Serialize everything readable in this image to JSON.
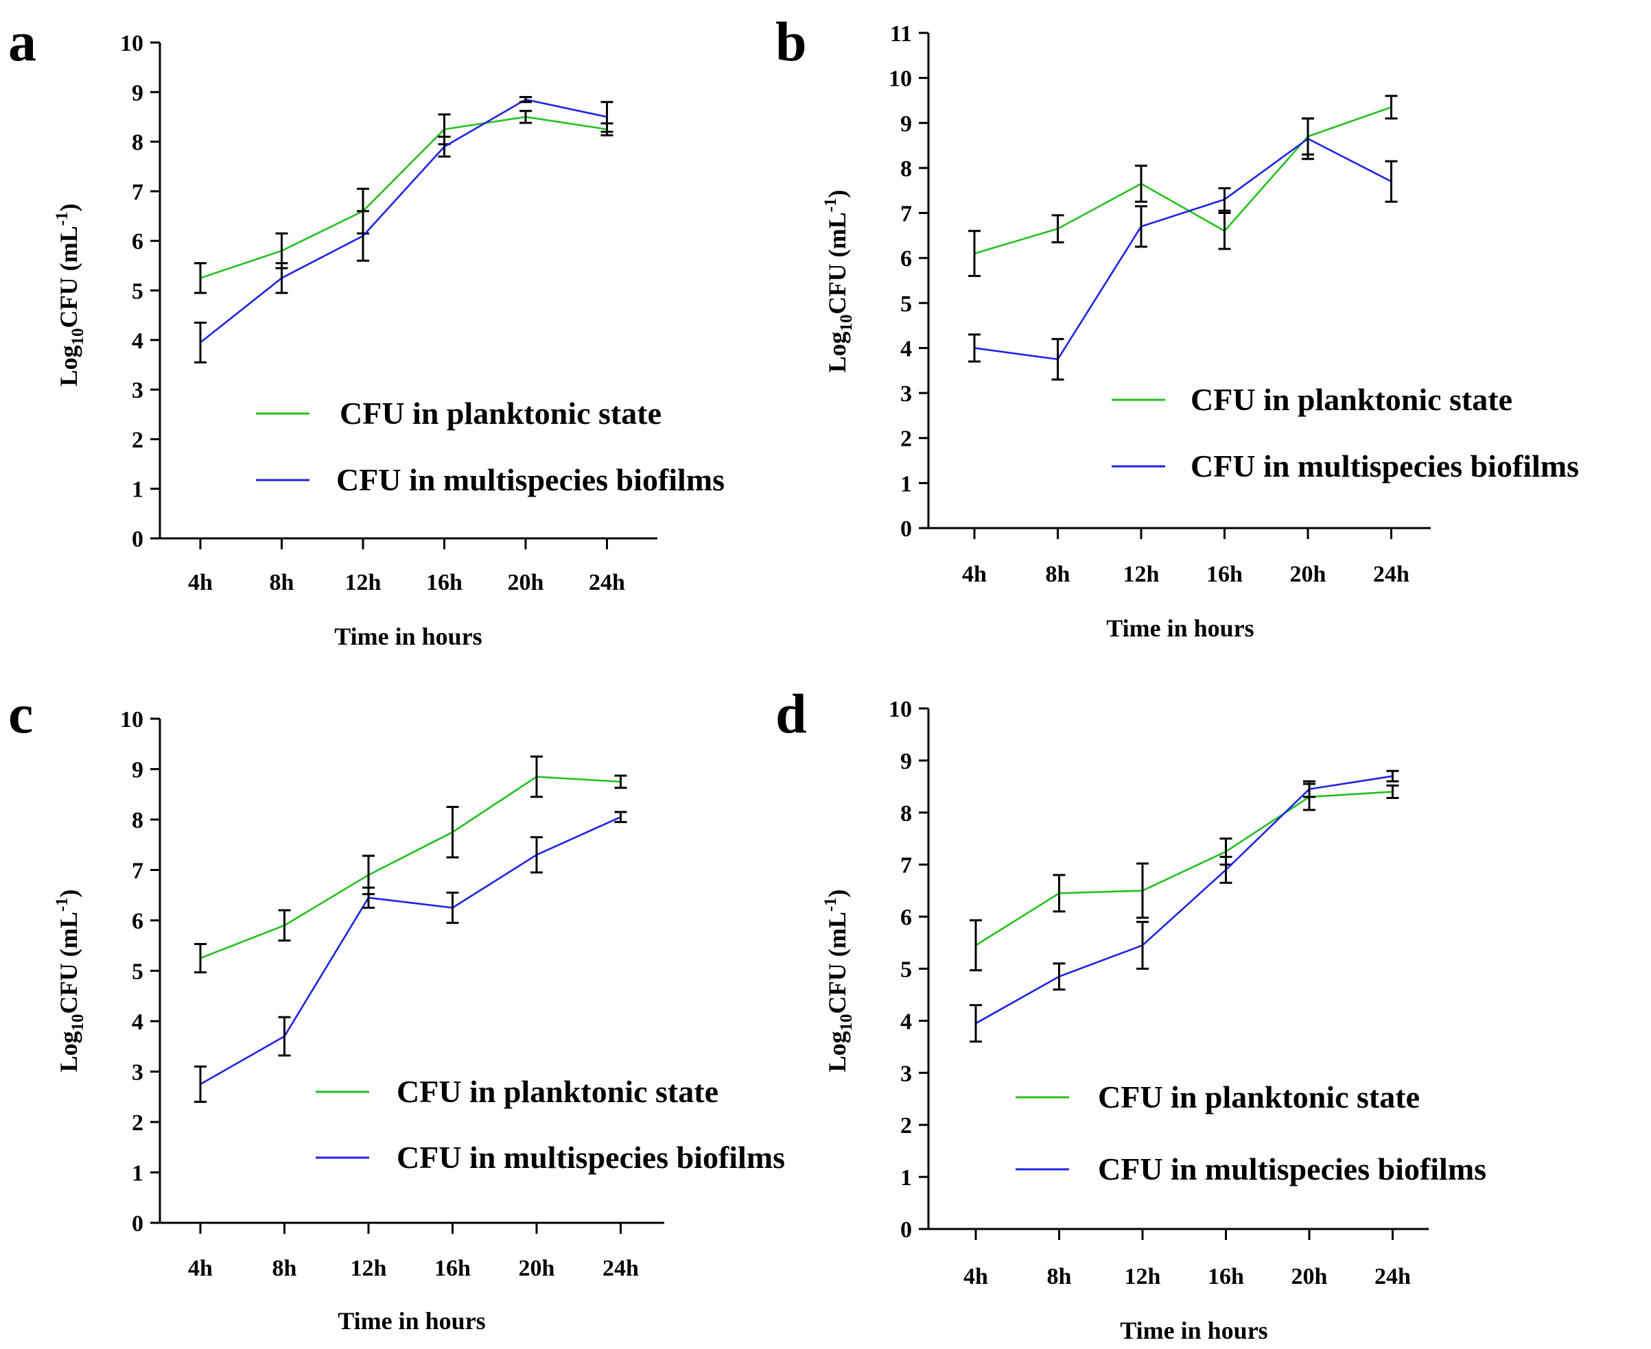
{
  "colors": {
    "planktonic": "#22c01e",
    "biofilm": "#1f22e6",
    "error_bar": "#000000"
  },
  "chart_data": [
    {
      "panel": "a",
      "type": "line",
      "xlabel": "Time in hours",
      "ylabel_main": "Log",
      "ylabel_sub": "10",
      "ylabel_rest": "CFU (mL",
      "ylabel_sup": "-1",
      "ylabel_end": ")",
      "ylim": [
        0,
        10
      ],
      "yticks": [
        "0",
        "1",
        "2",
        "3",
        "4",
        "5",
        "6",
        "7",
        "8",
        "9",
        "10"
      ],
      "categories": [
        "4h",
        "8h",
        "12h",
        "16h",
        "20h",
        "24h"
      ],
      "series": [
        {
          "name": "CFU in planktonic state",
          "values": [
            5.25,
            5.8,
            6.6,
            8.25,
            8.5,
            8.25
          ],
          "errors": [
            0.3,
            0.35,
            0.45,
            0.3,
            0.12,
            0.12
          ]
        },
        {
          "name": "CFU in multispecies biofilms",
          "values": [
            3.95,
            5.25,
            6.1,
            7.9,
            8.85,
            8.5
          ],
          "errors": [
            0.4,
            0.3,
            0.5,
            0.2,
            0.05,
            0.3
          ]
        }
      ]
    },
    {
      "panel": "b",
      "type": "line",
      "xlabel": "Time in hours",
      "ylabel_main": "Log",
      "ylabel_sub": "10",
      "ylabel_rest": "CFU (mL",
      "ylabel_sup": "-1",
      "ylabel_end": ")",
      "ylim": [
        0,
        11
      ],
      "yticks": [
        "0",
        "1",
        "2",
        "3",
        "4",
        "5",
        "6",
        "7",
        "8",
        "9",
        "10",
        "11"
      ],
      "categories": [
        "4h",
        "8h",
        "12h",
        "16h",
        "20h",
        "24h"
      ],
      "series": [
        {
          "name": "CFU in planktonic state",
          "values": [
            6.1,
            6.65,
            7.65,
            6.6,
            8.7,
            9.35
          ],
          "errors": [
            0.5,
            0.3,
            0.4,
            0.4,
            0.4,
            0.25
          ]
        },
        {
          "name": "CFU in multispecies biofilms",
          "values": [
            4.0,
            3.75,
            6.7,
            7.3,
            8.65,
            7.7
          ],
          "errors": [
            0.3,
            0.45,
            0.45,
            0.25,
            0.45,
            0.45
          ]
        }
      ]
    },
    {
      "panel": "c",
      "type": "line",
      "xlabel": "Time in hours",
      "ylabel_main": "Log",
      "ylabel_sub": "10",
      "ylabel_rest": "CFU (mL",
      "ylabel_sup": "-1",
      "ylabel_end": ")",
      "ylim": [
        0,
        10
      ],
      "yticks": [
        "0",
        "1",
        "2",
        "3",
        "4",
        "5",
        "6",
        "7",
        "8",
        "9",
        "10"
      ],
      "categories": [
        "4h",
        "8h",
        "12h",
        "16h",
        "20h",
        "24h"
      ],
      "series": [
        {
          "name": "CFU in planktonic state",
          "values": [
            5.25,
            5.9,
            6.9,
            7.75,
            8.85,
            8.75
          ],
          "errors": [
            0.28,
            0.3,
            0.38,
            0.5,
            0.4,
            0.12
          ]
        },
        {
          "name": "CFU in multispecies biofilms",
          "values": [
            2.75,
            3.7,
            6.45,
            6.25,
            7.3,
            8.05
          ],
          "errors": [
            0.35,
            0.38,
            0.2,
            0.3,
            0.35,
            0.1
          ]
        }
      ]
    },
    {
      "panel": "d",
      "type": "line",
      "xlabel": "Time in hours",
      "ylabel_main": "Log",
      "ylabel_sub": "10",
      "ylabel_rest": "CFU (mL",
      "ylabel_sup": "-1",
      "ylabel_end": ")",
      "ylim": [
        0,
        10
      ],
      "yticks": [
        "0",
        "1",
        "2",
        "3",
        "4",
        "5",
        "6",
        "7",
        "8",
        "9",
        "10"
      ],
      "categories": [
        "4h",
        "8h",
        "12h",
        "16h",
        "20h",
        "24h"
      ],
      "series": [
        {
          "name": "CFU in planktonic state",
          "values": [
            5.45,
            6.45,
            6.5,
            7.25,
            8.3,
            8.4
          ],
          "errors": [
            0.48,
            0.35,
            0.52,
            0.25,
            0.25,
            0.12
          ]
        },
        {
          "name": "CFU in multispecies biofilms",
          "values": [
            3.95,
            4.85,
            5.45,
            6.9,
            8.45,
            8.7
          ],
          "errors": [
            0.35,
            0.25,
            0.45,
            0.25,
            0.15,
            0.1
          ]
        }
      ]
    }
  ]
}
